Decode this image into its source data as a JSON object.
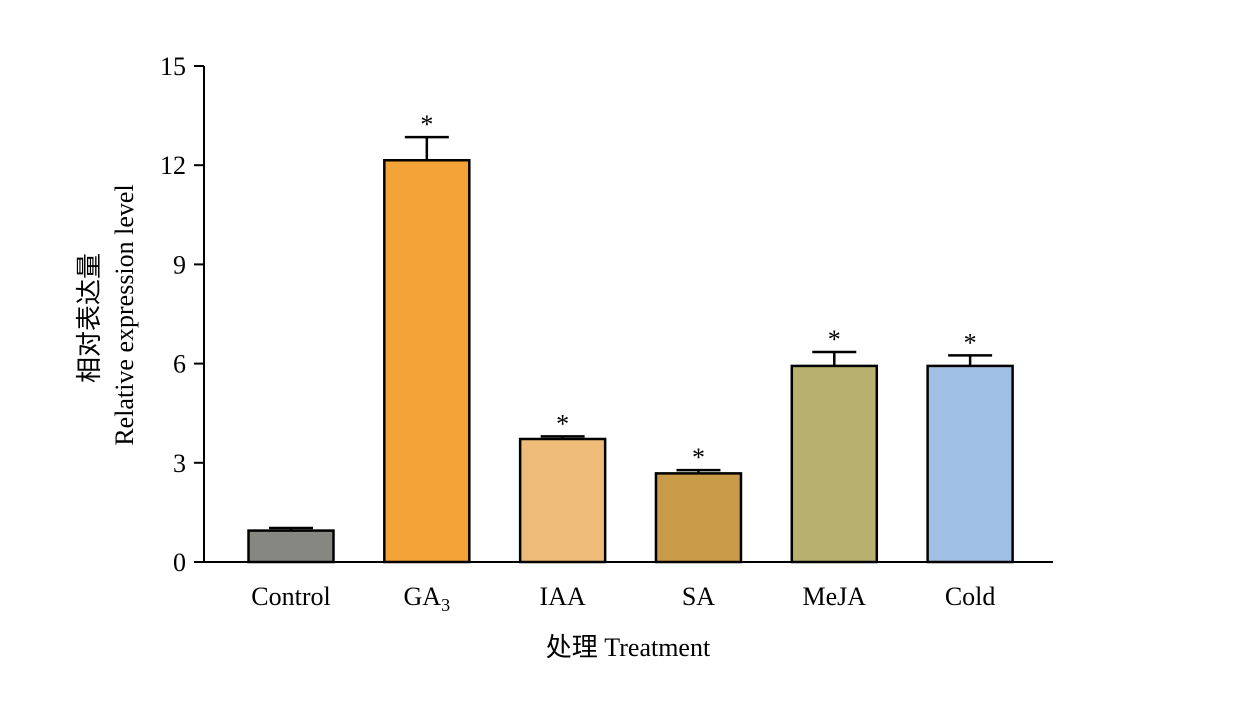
{
  "chart_data": {
    "type": "bar",
    "categories": [
      "Control",
      "GA",
      "IAA",
      "SA",
      "MeJA",
      "Cold"
    ],
    "category_subscripts": [
      "",
      "3",
      "",
      "",
      "",
      ""
    ],
    "values": [
      0.95,
      12.15,
      3.72,
      2.68,
      5.93,
      5.93
    ],
    "errors": [
      0.08,
      0.7,
      0.08,
      0.1,
      0.42,
      0.32
    ],
    "significance": [
      "",
      "*",
      "*",
      "*",
      "*",
      "*"
    ],
    "colors": [
      "#878782",
      "#f4a338",
      "#eebc78",
      "#c99a47",
      "#b7b06f",
      "#a0bfe4"
    ],
    "xlabel": "处理 Treatment",
    "ylabel_cn": "相对表达量",
    "ylabel_en": "Relative expression level",
    "ylim": [
      0,
      15
    ],
    "yticks": [
      0,
      3,
      6,
      9,
      12,
      15
    ],
    "grid": false,
    "legend": "none"
  }
}
